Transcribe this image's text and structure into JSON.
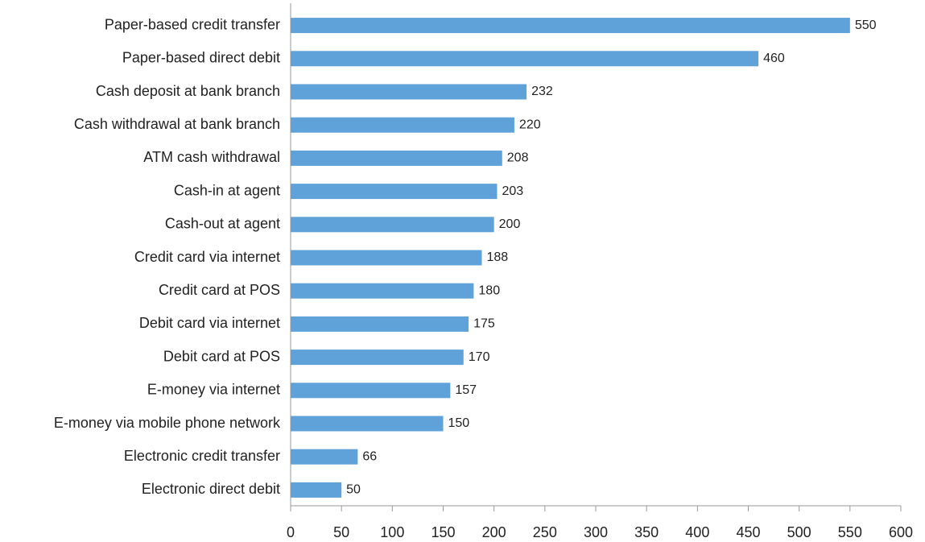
{
  "chart_data": {
    "type": "bar",
    "orientation": "horizontal",
    "categories": [
      "Paper-based credit transfer",
      "Paper-based direct debit",
      "Cash deposit at bank branch",
      "Cash withdrawal at bank branch",
      "ATM cash withdrawal",
      "Cash-in at agent",
      "Cash-out at agent",
      "Credit card via internet",
      "Credit card at POS",
      "Debit card via internet",
      "Debit card at POS",
      "E-money via internet",
      "E-money via mobile phone network",
      "Electronic credit transfer",
      "Electronic direct debit"
    ],
    "values": [
      550,
      460,
      232,
      220,
      208,
      203,
      200,
      188,
      180,
      175,
      170,
      157,
      150,
      66,
      50
    ],
    "color": "#5fa2d9",
    "xlim": [
      0,
      600
    ],
    "xticks": [
      0,
      50,
      100,
      150,
      200,
      250,
      300,
      350,
      400,
      450,
      500,
      550,
      600
    ],
    "grid": false
  }
}
